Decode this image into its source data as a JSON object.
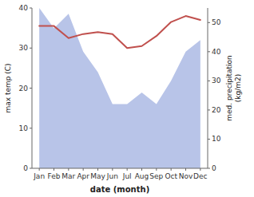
{
  "chart_data": {
    "type": "line",
    "xlabel": "date (month)",
    "ylabel": "max temp (C)",
    "y2label": "med. precipitation\n(kg/m2)",
    "categories": [
      "Jan",
      "Feb",
      "Mar",
      "Apr",
      "May",
      "Jun",
      "Jul",
      "Aug",
      "Sep",
      "Oct",
      "Nov",
      "Dec"
    ],
    "series": [
      {
        "type": "area",
        "axis": "y2",
        "color": "#b8c4e8",
        "values": [
          55,
          48,
          53,
          40,
          33,
          22,
          22,
          26,
          22,
          30,
          40,
          44
        ]
      },
      {
        "type": "line",
        "color": "#c0504d",
        "values": [
          35.5,
          35.5,
          32.5,
          33.5,
          34.0,
          33.5,
          30.0,
          30.5,
          33.0,
          36.5,
          38.0,
          37.0
        ]
      }
    ],
    "ylim": [
      0,
      40
    ],
    "yticks": [
      0,
      10,
      20,
      30,
      40
    ],
    "y2lim": [
      0,
      55
    ],
    "y2ticks": [
      0,
      10,
      20,
      30,
      40,
      50
    ],
    "grid": false
  }
}
